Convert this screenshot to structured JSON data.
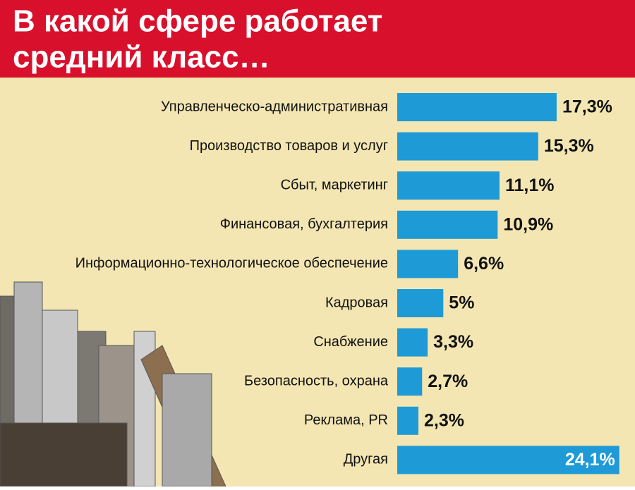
{
  "chart_data": {
    "type": "bar",
    "orientation": "horizontal",
    "title": [
      "В какой сфере работает",
      "средний класс…"
    ],
    "categories": [
      "Управленческо-административная",
      "Производство товаров и услуг",
      "Сбыт, маркетинг",
      "Финансовая, бухгалтерия",
      "Информационно-технологическое обеспечение",
      "Кадровая",
      "Снабжение",
      "Безопасность, охрана",
      "Реклама, PR",
      "Другая"
    ],
    "values": [
      17.3,
      15.3,
      11.1,
      10.9,
      6.6,
      5,
      3.3,
      2.7,
      2.3,
      24.1
    ],
    "value_labels": [
      "17,3%",
      "15,3%",
      "11,1%",
      "10,9%",
      "6,6%",
      "5%",
      "3,3%",
      "2,7%",
      "2,3%",
      "24,1%"
    ],
    "color": "#1e9ad6"
  }
}
